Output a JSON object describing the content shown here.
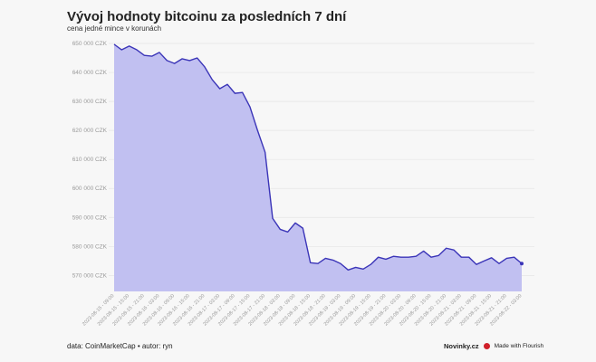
{
  "title": "Vývoj hodnoty bitcoinu za posledních 7 dní",
  "subtitle": "cena jedné mince v korunách",
  "footer": {
    "source": "data: CoinMarketCap • autor: ryn",
    "brand": "Novinky.cz",
    "flourish": "Made with Flourish"
  },
  "colors": {
    "line": "#3b35b8",
    "fill": "#c1c0f1",
    "grid": "#e6e6e6",
    "brand_dot": "#d0202a"
  },
  "chart_data": {
    "type": "area",
    "title": "Vývoj hodnoty bitcoinu za posledních 7 dní",
    "subtitle": "cena jedné mince v korunách",
    "ylim": [
      564500,
      650000
    ],
    "grid": true,
    "y_ticks": [
      650000,
      640000,
      630000,
      620000,
      610000,
      600000,
      590000,
      580000,
      570000
    ],
    "y_tick_labels": [
      "650 000 CZK",
      "640 000 CZK",
      "630 000 CZK",
      "620 000 CZK",
      "610 000 CZK",
      "600 000 CZK",
      "590 000 CZK",
      "580 000 CZK",
      "570 000 CZK"
    ],
    "x_tick_labels": [
      "2023-08-15 - 09:00",
      "2023-08-15 - 15:00",
      "2023-08-15 - 21:00",
      "2023-08-16 - 03:00",
      "2023-08-16 - 09:00",
      "2023-08-16 - 15:00",
      "2023-08-16 - 21:00",
      "2023-08-17 - 03:00",
      "2023-08-17 - 09:00",
      "2023-08-17 - 15:00",
      "2023-08-17 - 21:00",
      "2023-08-18 - 03:00",
      "2023-08-18 - 09:00",
      "2023-08-18 - 15:00",
      "2023-08-18 - 21:00",
      "2023-08-19 - 03:00",
      "2023-08-19 - 09:00",
      "2023-08-19 - 15:00",
      "2023-08-19 - 21:00",
      "2023-08-20 - 03:00",
      "2023-08-20 - 09:00",
      "2023-08-20 - 15:00",
      "2023-08-20 - 21:00",
      "2023-08-21 - 03:00",
      "2023-08-21 - 09:00",
      "2023-08-21 - 15:00",
      "2023-08-21 - 21:00",
      "2023-08-22 - 03:00"
    ],
    "x_start": "2023-08-15 09:00",
    "x_interval_hours": 3,
    "series": [
      {
        "values": [
          649700,
          647800,
          649100,
          647800,
          645900,
          645600,
          646900,
          644100,
          643100,
          644700,
          644100,
          645000,
          641900,
          637500,
          634400,
          635900,
          632800,
          633100,
          628100,
          620000,
          612500,
          589700,
          585900,
          585000,
          588100,
          586300,
          574400,
          574100,
          575900,
          575300,
          574100,
          571900,
          572800,
          572200,
          573800,
          576300,
          575600,
          576600,
          576300,
          576300,
          576600,
          578400,
          576300,
          576900,
          579400,
          578800,
          576300,
          576300,
          573800,
          575000,
          576100,
          574100,
          575900,
          576300,
          574100
        ]
      }
    ]
  }
}
